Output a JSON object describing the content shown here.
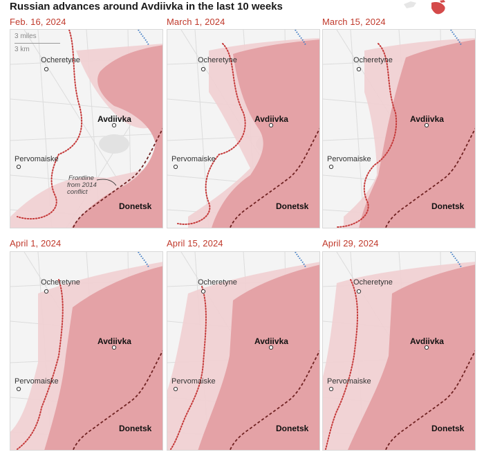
{
  "title": "Russian advances around Avdiivka in the last 10 weeks",
  "scale": {
    "miles": "3 miles",
    "km": "3 km"
  },
  "places": {
    "ocheretyne": "Ocheretyne",
    "avdiivka": "Avdiivka",
    "pervomaiske": "Pervomaiske",
    "donetsk": "Donetsk"
  },
  "annotation": {
    "line1": "Frontline",
    "line2": "from 2014",
    "line3": "conflict"
  },
  "panels": [
    {
      "date": "Feb. 16, 2024"
    },
    {
      "date": "March 1, 2024"
    },
    {
      "date": "March 15, 2024"
    },
    {
      "date": "April 1, 2024"
    },
    {
      "date": "April 15, 2024"
    },
    {
      "date": "April 29, 2024"
    }
  ],
  "colors": {
    "occupied": "#e4a2a6",
    "advance": "#f1cfd1",
    "frontline_dotted": "#c53a3a",
    "frontline_2014": "#6e2121",
    "border": "#3e7bc4",
    "date_text": "#c0392b"
  }
}
